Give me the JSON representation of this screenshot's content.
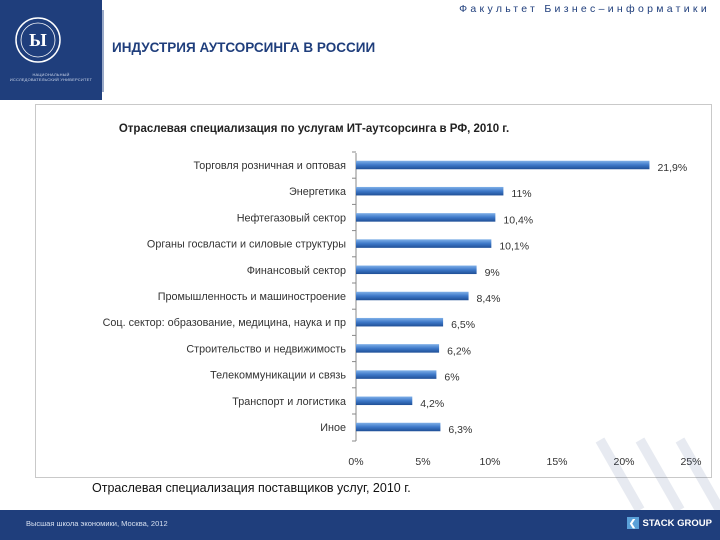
{
  "header": {
    "faculty": "Факультет Бизнес–информатики",
    "title": "ИНДУСТРИЯ АУТСОРСИНГА В РОССИИ",
    "university": "НАЦИОНАЛЬНЫЙ ИССЛЕДОВАТЕЛЬСКИЙ УНИВЕРСИТЕТ"
  },
  "caption": "Отраслевая специализация поставщиков услуг, 2010 г.",
  "footer": {
    "text": "Высшая школа экономики, Москва, 2012",
    "logo": "STACK GROUP"
  },
  "colors": {
    "brand": "#1f3e7c",
    "bar": "#3d78c8"
  },
  "chart_data": {
    "type": "bar",
    "orientation": "horizontal",
    "title": "Отраслевая специализация по услугам ИТ-аутсорсинга в РФ, 2010 г.",
    "categories": [
      "Торговля розничная и оптовая",
      "Энергетика",
      "Нефтегазовый сектор",
      "Органы госвласти и силовые структуры",
      "Финансовый сектор",
      "Промышленность и машиностроение",
      "Соц. сектор: образование, медицина, наука и пр",
      "Строительство и недвижимость",
      "Телекоммуникации и связь",
      "Транспорт и логистика",
      "Иное"
    ],
    "values": [
      21.9,
      11,
      10.4,
      10.1,
      9,
      8.4,
      6.5,
      6.2,
      6,
      4.2,
      6.3
    ],
    "value_labels": [
      "21,9%",
      "11%",
      "10,4%",
      "10,1%",
      "9%",
      "8,4%",
      "6,5%",
      "6,2%",
      "6%",
      "4,2%",
      "6,3%"
    ],
    "xlim": [
      0,
      25
    ],
    "xticks": [
      "0%",
      "5%",
      "10%",
      "15%",
      "20%",
      "25%"
    ],
    "grid": false,
    "legend": "none"
  }
}
